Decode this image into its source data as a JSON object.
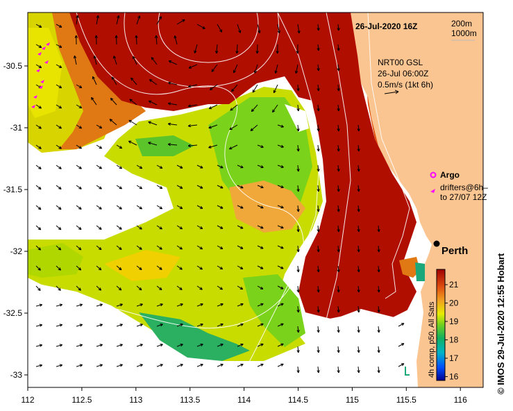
{
  "map": {
    "date_label": "26-Jul-2020 16Z",
    "contour_legend": [
      "200m",
      "1000m"
    ],
    "current_legend": [
      "NRT00 GSL",
      "26-Jul 06:00Z",
      "0.5m/s (1kt 6h)"
    ],
    "argo_label": "Argo",
    "drifters_label": [
      "drifters@6h–",
      "to 27/07 12Z"
    ],
    "city_label": "Perth",
    "credit": "© IMOS 29-Jul-2020 12:55 Hobart",
    "colorbar_label": "4h comp, p50, All Sats",
    "colorbar_ticks": [
      "21",
      "20",
      "19",
      "18",
      "17",
      "16"
    ],
    "x_ticks": [
      "112",
      "112.5",
      "113",
      "113.5",
      "114",
      "114.5",
      "115",
      "115.5",
      "116"
    ],
    "y_ticks": [
      "-30.5",
      "-31",
      "-31.5",
      "-32",
      "-32.5",
      "-33"
    ],
    "colors": {
      "land": "#fbc592",
      "warm": "#b00f00",
      "orange": "#e07814",
      "yellow": "#f0e600",
      "green": "#7ad21a",
      "teal": "#1aa87a",
      "magenta": "#ff00ff"
    }
  }
}
